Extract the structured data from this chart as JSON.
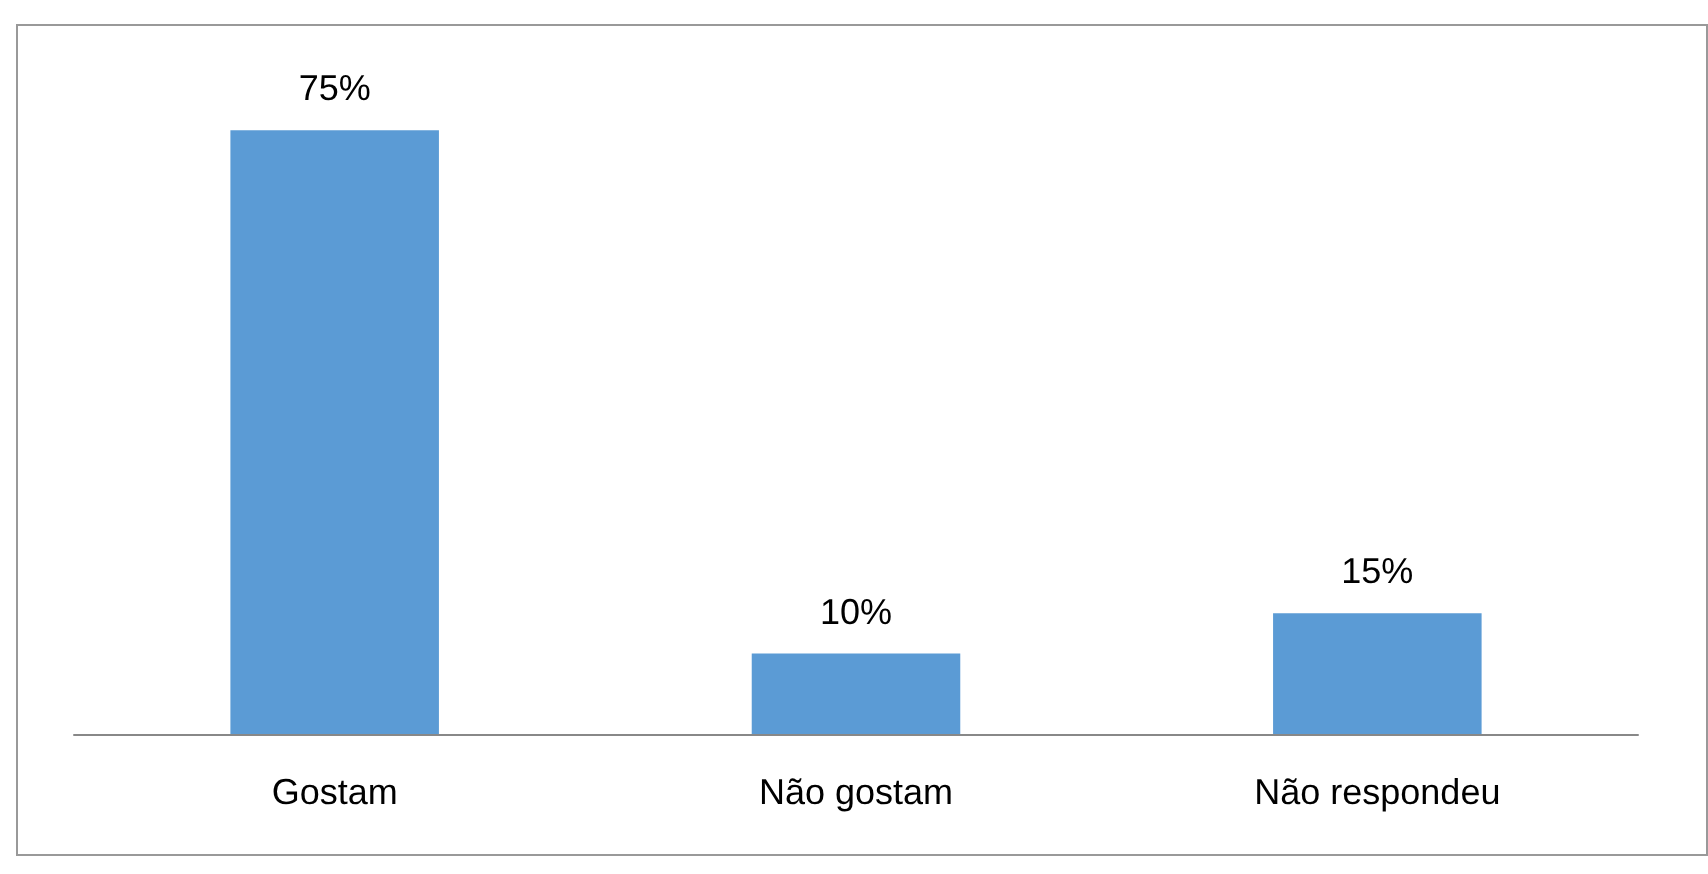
{
  "chart_data": {
    "type": "bar",
    "categories": [
      "Gostam",
      "Não gostam",
      "Não respondeu"
    ],
    "values": [
      75,
      10,
      15
    ],
    "value_labels": [
      "75%",
      "10%",
      "15%"
    ],
    "color": "#5b9bd5",
    "grid": false
  }
}
